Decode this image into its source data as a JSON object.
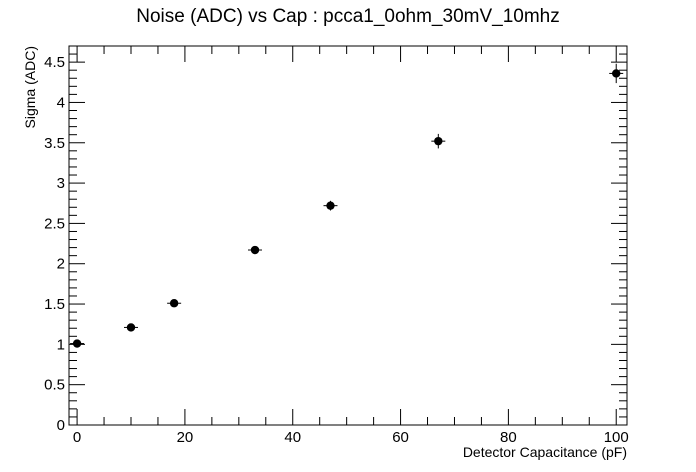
{
  "chart_data": {
    "type": "scatter",
    "title": "Noise (ADC) vs Cap : pcca1_0ohm_30mV_10mhz",
    "xlabel": "Detector Capacitance (pF)",
    "ylabel": "Sigma (ADC)",
    "xlim": [
      -1.5,
      102
    ],
    "ylim": [
      0,
      4.7
    ],
    "xticks": [
      0,
      20,
      40,
      60,
      80,
      100
    ],
    "xtick_labels": [
      "0",
      "20",
      "40",
      "60",
      "80",
      "100"
    ],
    "yticks": [
      0,
      0.5,
      1,
      1.5,
      2,
      2.5,
      3,
      3.5,
      4,
      4.5
    ],
    "ytick_labels": [
      "0",
      "0.5",
      "1",
      "1.5",
      "2",
      "2.5",
      "3",
      "3.5",
      "4",
      "4.5"
    ],
    "grid": false,
    "legend": "none",
    "marker_color": "#000000",
    "series": [
      {
        "x": [
          0,
          10,
          18,
          33,
          47,
          67,
          100
        ],
        "y": [
          1.01,
          1.21,
          1.51,
          2.17,
          2.72,
          3.52,
          4.36
        ],
        "yerr": [
          0.04,
          0.04,
          0.04,
          0.05,
          0.06,
          0.09,
          0.12
        ]
      }
    ]
  }
}
